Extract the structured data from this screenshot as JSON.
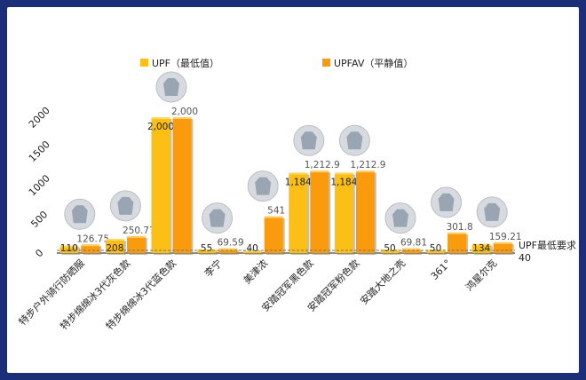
{
  "chart_data": {
    "type": "bar",
    "categories": [
      "特步户外骑行防晒服",
      "特步绵绵冰3代灰色款",
      "特步绵绵冰3代蓝色款",
      "李宁",
      "美津浓",
      "安踏冠军黑色款",
      "安踏冠军粉色款",
      "安踏大地之壳",
      "361°",
      "鸿星尔克"
    ],
    "series": [
      {
        "name": "UPF（最低值）",
        "values": [
          110,
          208,
          2000,
          55,
          40,
          1184,
          1184,
          50,
          50,
          134
        ],
        "labels": [
          "110",
          "208",
          "2,000",
          "55",
          "40",
          "1,184",
          "1,184",
          "50",
          "50",
          "134"
        ],
        "color": "#fbbf16"
      },
      {
        "name": "UPFAV（平静值）",
        "values": [
          126.75,
          250.77,
          2000,
          69.59,
          541,
          1212.9,
          1212.9,
          69.81,
          301.8,
          159.21
        ],
        "labels": [
          "126.75",
          "250.77",
          "2,000",
          "69.59",
          "541",
          "1,212.9",
          "1,212.9",
          "69.81",
          "301.8",
          "159.21"
        ],
        "color": "#f99b0c"
      }
    ],
    "ylim": [
      0,
      2000
    ],
    "yticks": [
      0,
      500,
      1000,
      1500,
      2000
    ],
    "reference_line": {
      "value": 40,
      "label": "UPF最低要求",
      "value_label": "40"
    },
    "legend_position": "top",
    "grid": false
  }
}
